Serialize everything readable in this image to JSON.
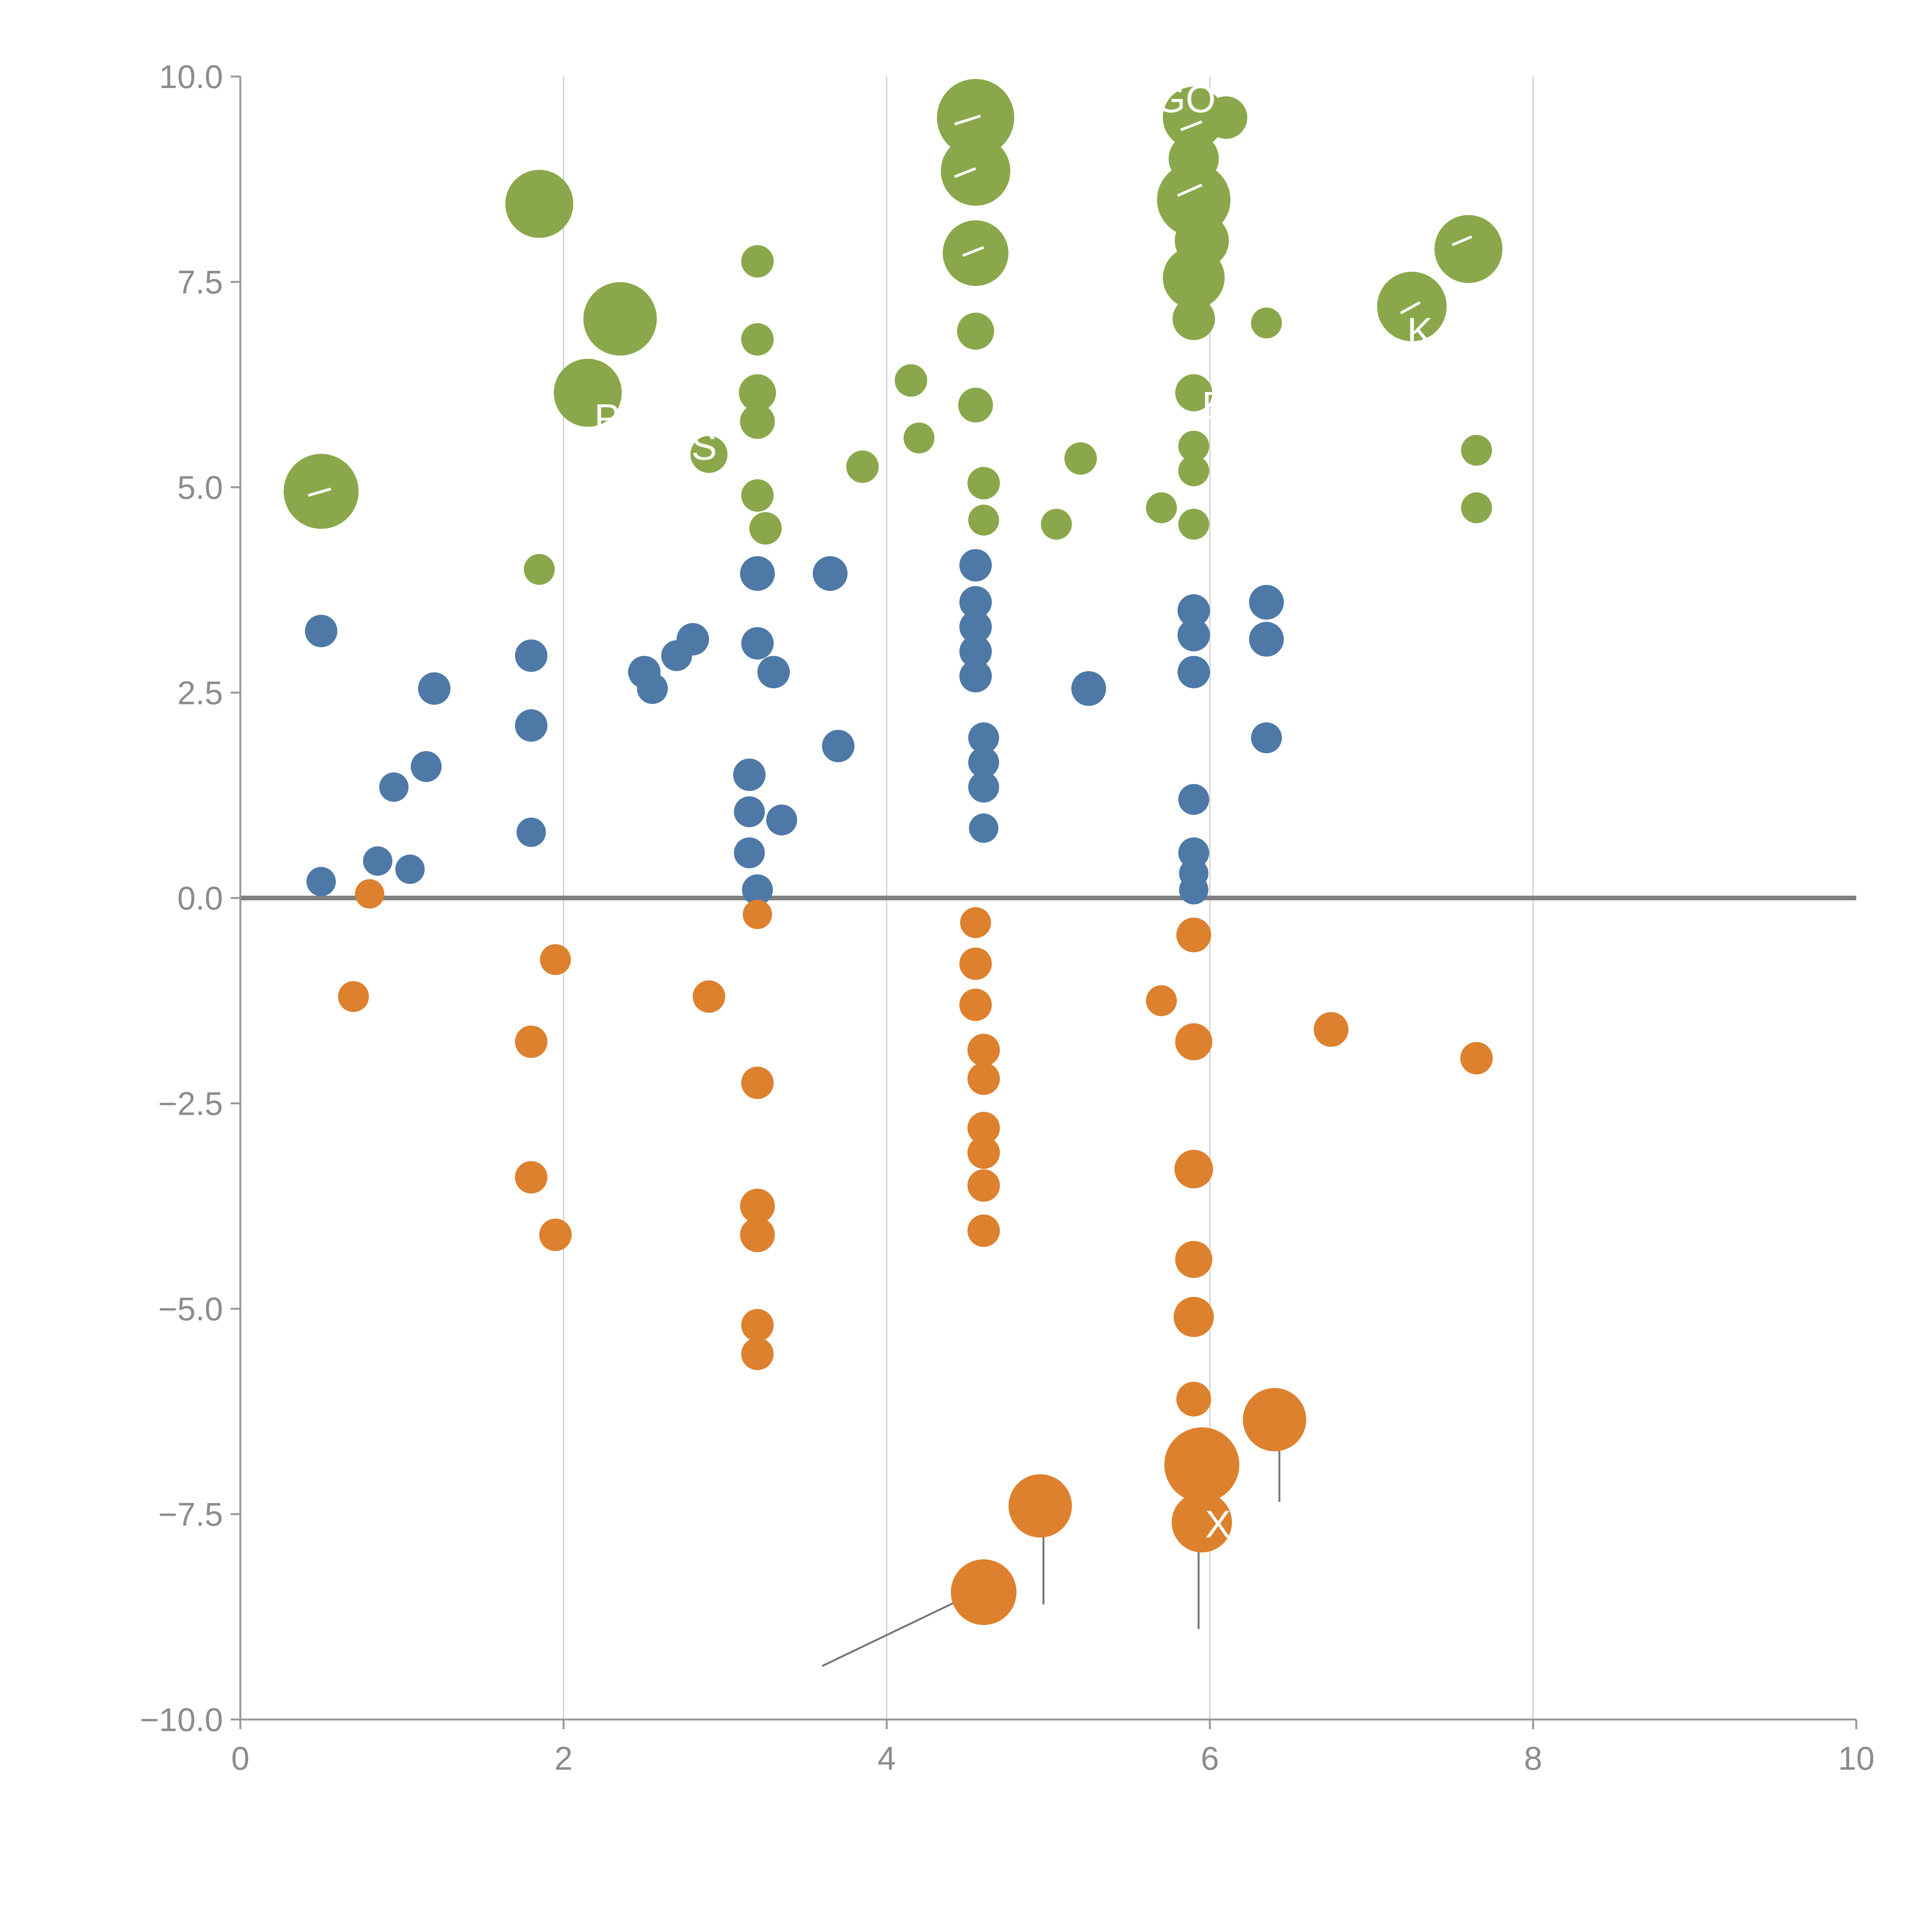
{
  "chart_data": {
    "type": "scatter",
    "title": "",
    "xlabel": "",
    "ylabel": "",
    "xlim": [
      0,
      10
    ],
    "ylim": [
      -10,
      10
    ],
    "x_ticks": [
      0,
      2,
      4,
      6,
      8,
      10
    ],
    "x_tick_labels": [
      "0",
      "2",
      "4",
      "6",
      "8",
      "10"
    ],
    "y_ticks": [
      10,
      7.5,
      5,
      2.5,
      0,
      -2.5,
      -5,
      -7.5,
      -10
    ],
    "y_tick_labels": [
      "10.0",
      "7.5",
      "5.0",
      "2.5",
      "0.0",
      "−2.5",
      "−5.0",
      "−7.5",
      "−10.0"
    ],
    "grid": {
      "vertical_at": [
        2,
        4,
        6,
        8
      ]
    },
    "zero_line": true,
    "legend": "none",
    "colors": {
      "green": "#8aa84b",
      "blue": "#4e79a7",
      "orange": "#dd812e",
      "grid": "#cccccc",
      "axis": "#999999",
      "zero": "#808080",
      "tick_text": "#8c8c8c",
      "leader": "#777777",
      "label_text": "#ffffff"
    },
    "series": [
      {
        "name": "green",
        "points": [
          {
            "x": 0.5,
            "y": 4.95,
            "r": 97
          },
          {
            "x": 1.85,
            "y": 8.45,
            "r": 88
          },
          {
            "x": 2.35,
            "y": 7.05,
            "r": 95
          },
          {
            "x": 2.15,
            "y": 6.15,
            "r": 88
          },
          {
            "x": 2.9,
            "y": 5.4,
            "r": 48
          },
          {
            "x": 1.85,
            "y": 4.0,
            "r": 40
          },
          {
            "x": 3.2,
            "y": 7.75,
            "r": 42
          },
          {
            "x": 3.2,
            "y": 6.8,
            "r": 42
          },
          {
            "x": 3.2,
            "y": 6.15,
            "r": 48
          },
          {
            "x": 3.2,
            "y": 5.8,
            "r": 45
          },
          {
            "x": 3.2,
            "y": 4.9,
            "r": 42
          },
          {
            "x": 3.25,
            "y": 4.5,
            "r": 42
          },
          {
            "x": 3.85,
            "y": 5.25,
            "r": 42
          },
          {
            "x": 4.2,
            "y": 5.6,
            "r": 40
          },
          {
            "x": 4.15,
            "y": 6.3,
            "r": 42
          },
          {
            "x": 4.55,
            "y": 9.5,
            "r": 100
          },
          {
            "x": 4.55,
            "y": 8.85,
            "r": 90
          },
          {
            "x": 4.55,
            "y": 7.85,
            "r": 85
          },
          {
            "x": 4.55,
            "y": 6.9,
            "r": 48
          },
          {
            "x": 4.55,
            "y": 6.0,
            "r": 45
          },
          {
            "x": 4.6,
            "y": 5.05,
            "r": 42
          },
          {
            "x": 4.6,
            "y": 4.6,
            "r": 40
          },
          {
            "x": 5.05,
            "y": 4.55,
            "r": 40
          },
          {
            "x": 5.2,
            "y": 5.35,
            "r": 42
          },
          {
            "x": 5.7,
            "y": 4.75,
            "r": 40
          },
          {
            "x": 5.9,
            "y": 9.5,
            "r": 80
          },
          {
            "x": 6.1,
            "y": 9.5,
            "r": 55
          },
          {
            "x": 5.9,
            "y": 9.0,
            "r": 65
          },
          {
            "x": 5.9,
            "y": 8.5,
            "r": 95
          },
          {
            "x": 5.95,
            "y": 8.0,
            "r": 70
          },
          {
            "x": 5.9,
            "y": 7.55,
            "r": 80
          },
          {
            "x": 5.9,
            "y": 7.05,
            "r": 55
          },
          {
            "x": 6.35,
            "y": 7.0,
            "r": 40
          },
          {
            "x": 5.9,
            "y": 6.15,
            "r": 48
          },
          {
            "x": 5.9,
            "y": 5.5,
            "r": 40
          },
          {
            "x": 5.9,
            "y": 5.2,
            "r": 40
          },
          {
            "x": 5.9,
            "y": 4.55,
            "r": 40
          },
          {
            "x": 7.25,
            "y": 7.2,
            "r": 90
          },
          {
            "x": 7.6,
            "y": 7.9,
            "r": 88
          },
          {
            "x": 7.65,
            "y": 5.45,
            "r": 40
          },
          {
            "x": 7.65,
            "y": 4.75,
            "r": 40
          }
        ]
      },
      {
        "name": "blue",
        "points": [
          {
            "x": 0.5,
            "y": 3.25,
            "r": 42
          },
          {
            "x": 0.5,
            "y": 0.2,
            "r": 38
          },
          {
            "x": 0.85,
            "y": 0.45,
            "r": 38
          },
          {
            "x": 1.05,
            "y": 0.35,
            "r": 38
          },
          {
            "x": 0.95,
            "y": 1.35,
            "r": 38
          },
          {
            "x": 1.15,
            "y": 1.6,
            "r": 40
          },
          {
            "x": 1.2,
            "y": 2.55,
            "r": 42
          },
          {
            "x": 1.8,
            "y": 2.95,
            "r": 42
          },
          {
            "x": 1.8,
            "y": 2.1,
            "r": 42
          },
          {
            "x": 1.8,
            "y": 0.8,
            "r": 38
          },
          {
            "x": 2.5,
            "y": 2.75,
            "r": 42
          },
          {
            "x": 2.55,
            "y": 2.55,
            "r": 40
          },
          {
            "x": 2.7,
            "y": 2.95,
            "r": 40
          },
          {
            "x": 2.8,
            "y": 3.15,
            "r": 42
          },
          {
            "x": 3.2,
            "y": 3.95,
            "r": 45
          },
          {
            "x": 3.2,
            "y": 3.1,
            "r": 42
          },
          {
            "x": 3.3,
            "y": 2.75,
            "r": 42
          },
          {
            "x": 3.15,
            "y": 1.5,
            "r": 42
          },
          {
            "x": 3.15,
            "y": 1.05,
            "r": 40
          },
          {
            "x": 3.35,
            "y": 0.95,
            "r": 40
          },
          {
            "x": 3.15,
            "y": 0.55,
            "r": 40
          },
          {
            "x": 3.2,
            "y": 0.1,
            "r": 40
          },
          {
            "x": 3.65,
            "y": 3.95,
            "r": 45
          },
          {
            "x": 3.7,
            "y": 1.85,
            "r": 42
          },
          {
            "x": 4.55,
            "y": 4.05,
            "r": 42
          },
          {
            "x": 4.55,
            "y": 3.6,
            "r": 42
          },
          {
            "x": 4.55,
            "y": 3.3,
            "r": 42
          },
          {
            "x": 4.55,
            "y": 3.0,
            "r": 42
          },
          {
            "x": 4.55,
            "y": 2.7,
            "r": 42
          },
          {
            "x": 4.6,
            "y": 1.95,
            "r": 40
          },
          {
            "x": 4.6,
            "y": 1.65,
            "r": 40
          },
          {
            "x": 4.6,
            "y": 1.35,
            "r": 40
          },
          {
            "x": 4.6,
            "y": 0.85,
            "r": 38
          },
          {
            "x": 5.25,
            "y": 2.55,
            "r": 45
          },
          {
            "x": 5.9,
            "y": 3.5,
            "r": 42
          },
          {
            "x": 5.9,
            "y": 3.2,
            "r": 42
          },
          {
            "x": 5.9,
            "y": 2.75,
            "r": 42
          },
          {
            "x": 5.9,
            "y": 1.2,
            "r": 40
          },
          {
            "x": 5.9,
            "y": 0.55,
            "r": 40
          },
          {
            "x": 5.9,
            "y": 0.3,
            "r": 38
          },
          {
            "x": 5.9,
            "y": 0.1,
            "r": 38
          },
          {
            "x": 6.35,
            "y": 3.6,
            "r": 45
          },
          {
            "x": 6.35,
            "y": 3.15,
            "r": 45
          },
          {
            "x": 6.35,
            "y": 1.95,
            "r": 40
          }
        ]
      },
      {
        "name": "orange",
        "points": [
          {
            "x": 0.8,
            "y": 0.05,
            "r": 38
          },
          {
            "x": 0.7,
            "y": -1.2,
            "r": 40
          },
          {
            "x": 1.95,
            "y": -0.75,
            "r": 40
          },
          {
            "x": 1.8,
            "y": -1.75,
            "r": 42
          },
          {
            "x": 1.8,
            "y": -3.4,
            "r": 42
          },
          {
            "x": 1.95,
            "y": -4.1,
            "r": 42
          },
          {
            "x": 2.9,
            "y": -1.2,
            "r": 42
          },
          {
            "x": 3.2,
            "y": -0.2,
            "r": 38
          },
          {
            "x": 3.2,
            "y": -2.25,
            "r": 42
          },
          {
            "x": 3.2,
            "y": -3.75,
            "r": 45
          },
          {
            "x": 3.2,
            "y": -4.1,
            "r": 45
          },
          {
            "x": 3.2,
            "y": -5.2,
            "r": 42
          },
          {
            "x": 3.2,
            "y": -5.55,
            "r": 42
          },
          {
            "x": 4.55,
            "y": -0.3,
            "r": 40
          },
          {
            "x": 4.55,
            "y": -0.8,
            "r": 42
          },
          {
            "x": 4.55,
            "y": -1.3,
            "r": 42
          },
          {
            "x": 4.6,
            "y": -1.85,
            "r": 42
          },
          {
            "x": 4.6,
            "y": -2.2,
            "r": 42
          },
          {
            "x": 4.6,
            "y": -2.8,
            "r": 42
          },
          {
            "x": 4.6,
            "y": -3.1,
            "r": 42
          },
          {
            "x": 4.6,
            "y": -3.5,
            "r": 42
          },
          {
            "x": 4.6,
            "y": -4.05,
            "r": 42
          },
          {
            "x": 5.7,
            "y": -1.25,
            "r": 40
          },
          {
            "x": 5.9,
            "y": -0.45,
            "r": 45
          },
          {
            "x": 5.9,
            "y": -1.75,
            "r": 48
          },
          {
            "x": 5.9,
            "y": -3.3,
            "r": 50
          },
          {
            "x": 5.9,
            "y": -4.4,
            "r": 48
          },
          {
            "x": 5.9,
            "y": -5.1,
            "r": 52
          },
          {
            "x": 5.9,
            "y": -6.1,
            "r": 45
          },
          {
            "x": 6.75,
            "y": -1.6,
            "r": 45
          },
          {
            "x": 7.65,
            "y": -1.95,
            "r": 42
          },
          {
            "x": 6.4,
            "y": -6.35,
            "r": 82
          },
          {
            "x": 5.95,
            "y": -6.9,
            "r": 97
          },
          {
            "x": 5.95,
            "y": -7.6,
            "r": 78
          },
          {
            "x": 4.95,
            "y": -7.4,
            "r": 82
          },
          {
            "x": 4.6,
            "y": -8.45,
            "r": 85
          }
        ]
      }
    ],
    "annotations": {
      "leader_lines": [
        {
          "x1": 3.6,
          "y1": -9.35,
          "x2": 4.5,
          "y2": -8.5
        },
        {
          "x1": 4.97,
          "y1": -7.65,
          "x2": 4.97,
          "y2": -8.6
        },
        {
          "x1": 5.93,
          "y1": -7.95,
          "x2": 5.93,
          "y2": -8.9
        },
        {
          "x1": 6.43,
          "y1": -6.55,
          "x2": 6.43,
          "y2": -7.35
        }
      ],
      "white_marks": [
        {
          "x1": 0.42,
          "y1": 4.9,
          "x2": 0.56,
          "y2": 4.98
        },
        {
          "x1": 4.42,
          "y1": 9.42,
          "x2": 4.58,
          "y2": 9.52
        },
        {
          "x1": 4.42,
          "y1": 8.78,
          "x2": 4.55,
          "y2": 8.88
        },
        {
          "x1": 4.47,
          "y1": 7.82,
          "x2": 4.6,
          "y2": 7.92
        },
        {
          "x1": 5.8,
          "y1": 8.55,
          "x2": 5.95,
          "y2": 8.68
        },
        {
          "x1": 5.82,
          "y1": 9.35,
          "x2": 5.95,
          "y2": 9.45
        },
        {
          "x1": 7.18,
          "y1": 7.12,
          "x2": 7.3,
          "y2": 7.25
        },
        {
          "x1": 7.5,
          "y1": 7.95,
          "x2": 7.62,
          "y2": 8.05
        }
      ],
      "labels": [
        {
          "text": "GO",
          "x": 5.85,
          "y": 9.73
        },
        {
          "text": "B",
          "x": 6.03,
          "y": 6.0
        },
        {
          "text": "X",
          "x": 6.05,
          "y": -7.62
        },
        {
          "text": "K",
          "x": 7.3,
          "y": 6.9
        },
        {
          "text": "P",
          "x": 2.27,
          "y": 5.85
        },
        {
          "text": "S",
          "x": 2.87,
          "y": 5.5
        }
      ]
    }
  }
}
